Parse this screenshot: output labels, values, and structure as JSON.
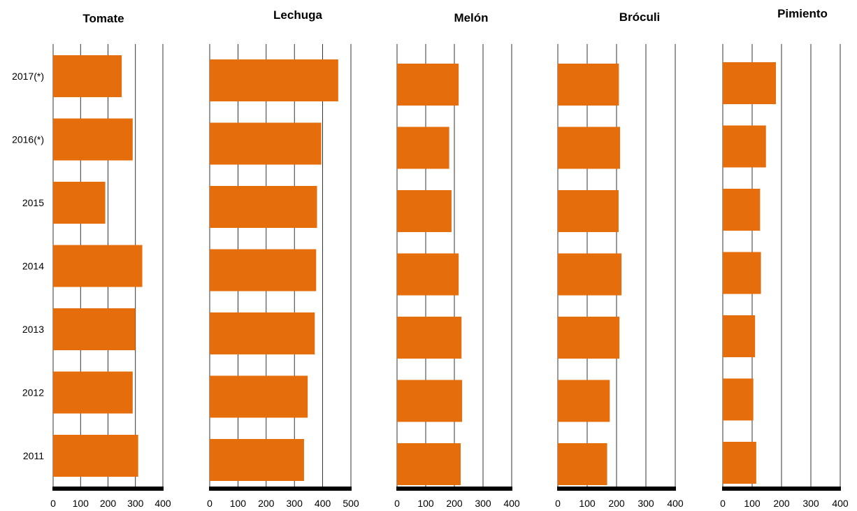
{
  "chart_data": [
    {
      "type": "bar",
      "orientation": "horizontal",
      "title": "Tomate",
      "categories": [
        "2017(*)",
        "2016(*)",
        "2015",
        "2014",
        "2013",
        "2012",
        "2011"
      ],
      "values": [
        250,
        290,
        190,
        325,
        300,
        290,
        310
      ],
      "xlim": [
        0,
        400
      ],
      "xticks": [
        "0",
        "100",
        "200",
        "300",
        "400"
      ],
      "grid": true
    },
    {
      "type": "bar",
      "orientation": "horizontal",
      "title": "Lechuga",
      "categories": [
        "2017(*)",
        "2016(*)",
        "2015",
        "2014",
        "2013",
        "2012",
        "2011"
      ],
      "values": [
        455,
        395,
        380,
        377,
        372,
        347,
        334
      ],
      "xlim": [
        0,
        500
      ],
      "xticks": [
        "0",
        "100",
        "200",
        "300",
        "400",
        "500"
      ],
      "grid": true
    },
    {
      "type": "bar",
      "orientation": "horizontal",
      "title": "Melón",
      "categories": [
        "2017(*)",
        "2016(*)",
        "2015",
        "2014",
        "2013",
        "2012",
        "2011"
      ],
      "values": [
        215,
        182,
        190,
        215,
        225,
        227,
        222
      ],
      "xlim": [
        0,
        400
      ],
      "xticks": [
        "0",
        "100",
        "200",
        "300",
        "400"
      ],
      "grid": true
    },
    {
      "type": "bar",
      "orientation": "horizontal",
      "title": "Bróculi",
      "categories": [
        "2017(*)",
        "2016(*)",
        "2015",
        "2014",
        "2013",
        "2012",
        "2011"
      ],
      "values": [
        208,
        212,
        207,
        217,
        210,
        177,
        168
      ],
      "xlim": [
        0,
        400
      ],
      "xticks": [
        "0",
        "100",
        "200",
        "300",
        "400"
      ],
      "grid": true
    },
    {
      "type": "bar",
      "orientation": "horizontal",
      "title": "Pimiento",
      "categories": [
        "2017(*)",
        "2016(*)",
        "2015",
        "2014",
        "2013",
        "2012",
        "2011"
      ],
      "values": [
        181,
        147,
        127,
        130,
        110,
        104,
        114
      ],
      "xlim": [
        0,
        400
      ],
      "xticks": [
        "0",
        "100",
        "200",
        "300",
        "400"
      ],
      "grid": true
    }
  ],
  "colors": {
    "bar": "#e56d0b",
    "grid": "#000000",
    "axis": "#000000",
    "text": "#000000"
  }
}
